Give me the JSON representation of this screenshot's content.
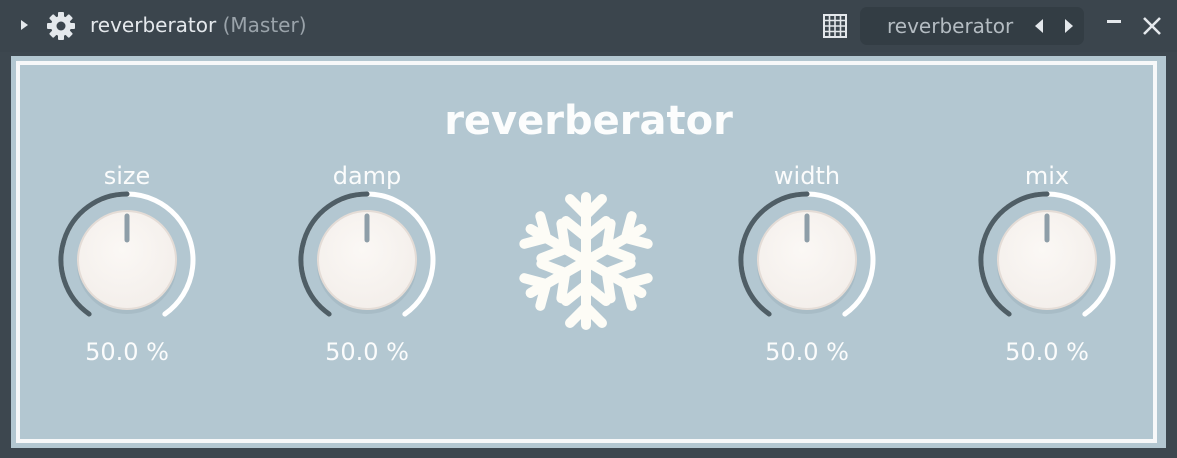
{
  "window": {
    "title": "reverberator",
    "subtitle": "(Master)",
    "preset_name": "reverberator",
    "icons": [
      "expand-arrow-icon",
      "gear-icon",
      "grid-icon",
      "prev-preset-icon",
      "next-preset-icon",
      "minimize-icon",
      "close-icon"
    ]
  },
  "plugin": {
    "title": "reverberator",
    "colors": {
      "panel": "#b3c7d1",
      "frame": "#f7f8f9",
      "arc_track": "#ffffff",
      "arc_fill": "#4f5e66",
      "knob": "#f3eeea"
    },
    "knobs": [
      {
        "label": "size",
        "value": 0.5,
        "value_text": "50.0 %"
      },
      {
        "label": "damp",
        "value": 0.5,
        "value_text": "50.0 %"
      },
      {
        "label": "width",
        "value": 0.5,
        "value_text": "50.0 %"
      },
      {
        "label": "mix",
        "value": 0.5,
        "value_text": "50.0 %"
      }
    ],
    "freeze_icon": "snowflake-icon"
  }
}
